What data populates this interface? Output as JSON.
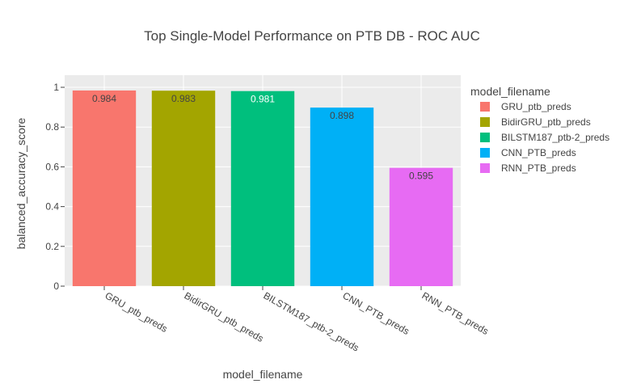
{
  "chart_data": {
    "type": "bar",
    "title": "Top Single-Model Performance on PTB DB - ROC AUC",
    "xlabel": "model_filename",
    "ylabel": "balanced_accuracy_score",
    "ylim": [
      0,
      1.0
    ],
    "yticks": [
      0,
      0.2,
      0.4,
      0.6,
      0.8,
      1
    ],
    "ytick_labels": [
      "0",
      "0.2",
      "0.4",
      "0.6",
      "0.8",
      "1"
    ],
    "categories": [
      "GRU_ptb_preds",
      "BidirGRU_ptb_preds",
      "BILSTM187_ptb-2_preds",
      "CNN_PTB_preds",
      "RNN_PTB_preds"
    ],
    "values": [
      0.984,
      0.983,
      0.981,
      0.898,
      0.595
    ],
    "value_labels": [
      "0.984",
      "0.983",
      "0.981",
      "0.898",
      "0.595"
    ],
    "colors": [
      "#F8766D",
      "#A3A500",
      "#00BF7D",
      "#00B0F6",
      "#E76BF3"
    ],
    "value_label_colors": [
      "#444444",
      "#444444",
      "#ffffff",
      "#444444",
      "#444444"
    ],
    "legend": {
      "title": "model_filename",
      "position": "right",
      "entries": [
        "GRU_ptb_preds",
        "BidirGRU_ptb_preds",
        "BILSTM187_ptb-2_preds",
        "CNN_PTB_preds",
        "RNN_PTB_preds"
      ]
    },
    "grid": true,
    "plot_background": "#EBEBEB",
    "grid_color": "#ffffff"
  }
}
